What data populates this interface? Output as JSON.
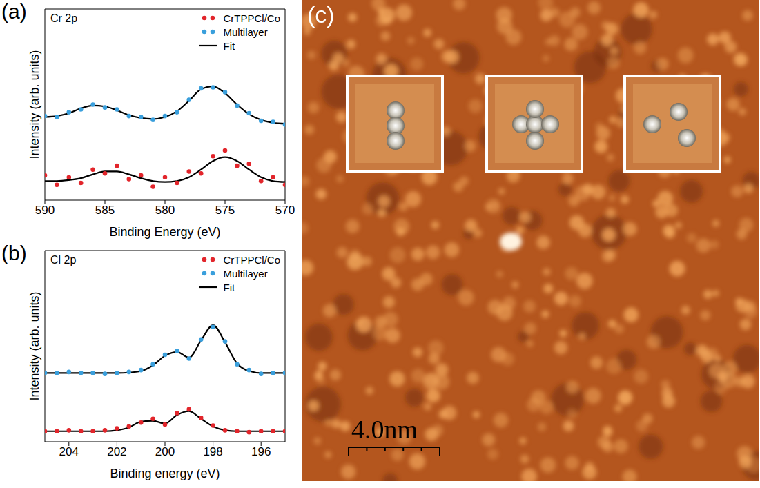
{
  "chart_data": [
    {
      "type": "line",
      "panel": "(a)",
      "title": "Cr 2p",
      "x_label": "Binding Energy (eV)",
      "y_label": "Intensity (arb. units)",
      "x": [
        590,
        589,
        588,
        587,
        586,
        585,
        584,
        583,
        582,
        581,
        580,
        579,
        578,
        577,
        576,
        575,
        574,
        573,
        572,
        571,
        570
      ],
      "xlim": [
        590,
        570
      ],
      "xticks": [
        590,
        585,
        580,
        575,
        570
      ],
      "ylim": [
        0,
        10
      ],
      "tick_labels": "x",
      "legend": "top-right",
      "series": [
        {
          "name": "CrTPPCl/Co",
          "type": "scatter",
          "marker": "circle",
          "color": "#e2252b",
          "values": [
            1.3,
            0.8,
            1.2,
            0.9,
            1.6,
            1.4,
            1.8,
            1.1,
            1.3,
            0.7,
            1.2,
            0.9,
            1.5,
            1.4,
            2.3,
            2.6,
            1.8,
            1.9,
            1.0,
            1.2,
            0.8
          ]
        },
        {
          "name": "Multilayer",
          "type": "scatter",
          "marker": "circle",
          "color": "#3a9fdc",
          "values": [
            4.4,
            4.35,
            4.6,
            4.75,
            5.0,
            4.85,
            4.75,
            4.4,
            4.35,
            4.2,
            4.4,
            4.6,
            5.25,
            5.85,
            5.9,
            5.65,
            4.95,
            4.55,
            4.15,
            4.1,
            3.95
          ]
        },
        {
          "name": "Fit",
          "type": "line",
          "line_style": "solid",
          "color": "#000000",
          "values": [
            4.35,
            4.4,
            4.55,
            4.8,
            4.95,
            4.9,
            4.7,
            4.45,
            4.3,
            4.25,
            4.35,
            4.65,
            5.2,
            5.8,
            5.95,
            5.6,
            5.0,
            4.5,
            4.2,
            4.05,
            4.0
          ]
        },
        {
          "name": "Fit",
          "type": "line",
          "line_style": "solid",
          "color": "#000000",
          "values": [
            1.0,
            1.0,
            1.05,
            1.15,
            1.35,
            1.5,
            1.5,
            1.35,
            1.15,
            1.0,
            0.95,
            1.0,
            1.2,
            1.6,
            2.05,
            2.25,
            2.05,
            1.6,
            1.2,
            1.0,
            0.95
          ]
        }
      ]
    },
    {
      "type": "line",
      "panel": "(b)",
      "title": "Cl 2p",
      "x_label": "Binding energy (eV)",
      "y_label": "Intensity (arb. units)",
      "x": [
        205,
        204.5,
        204,
        203.5,
        203,
        202.5,
        202,
        201.5,
        201,
        200.5,
        200,
        199.5,
        199,
        198.5,
        198,
        197.5,
        197,
        196.5,
        196,
        195.5,
        195
      ],
      "xlim": [
        205,
        195
      ],
      "xticks": [
        204,
        202,
        200,
        198,
        196
      ],
      "ylim": [
        0,
        10
      ],
      "tick_labels": "x",
      "legend": "top-right",
      "series": [
        {
          "name": "CrTPPCl/Co",
          "type": "scatter",
          "marker": "circle",
          "color": "#e2252b",
          "values": [
            0.55,
            0.55,
            0.6,
            0.55,
            0.55,
            0.6,
            0.7,
            0.8,
            1.0,
            1.2,
            0.9,
            1.5,
            1.7,
            1.25,
            0.85,
            0.6,
            0.55,
            0.5,
            0.55,
            0.55,
            0.55
          ]
        },
        {
          "name": "Multilayer",
          "type": "scatter",
          "marker": "circle",
          "color": "#3a9fdc",
          "values": [
            3.6,
            3.6,
            3.65,
            3.6,
            3.6,
            3.55,
            3.6,
            3.65,
            3.75,
            4.05,
            4.55,
            4.75,
            4.35,
            5.35,
            6.0,
            5.25,
            4.05,
            3.75,
            3.55,
            3.6,
            3.6
          ]
        },
        {
          "name": "Fit",
          "type": "line",
          "line_style": "solid",
          "color": "#000000",
          "values": [
            3.6,
            3.6,
            3.6,
            3.6,
            3.6,
            3.6,
            3.6,
            3.62,
            3.7,
            4.0,
            4.5,
            4.7,
            4.4,
            5.3,
            6.1,
            5.2,
            4.1,
            3.7,
            3.6,
            3.6,
            3.6
          ]
        },
        {
          "name": "Fit",
          "type": "line",
          "line_style": "solid",
          "color": "#000000",
          "values": [
            0.55,
            0.55,
            0.55,
            0.55,
            0.55,
            0.55,
            0.6,
            0.75,
            1.05,
            1.1,
            0.95,
            1.4,
            1.6,
            1.2,
            0.8,
            0.6,
            0.55,
            0.55,
            0.55,
            0.55,
            0.55
          ]
        }
      ]
    }
  ],
  "image": {
    "type": "image",
    "label": "(c)",
    "scale_bar": "4.0nm"
  }
}
